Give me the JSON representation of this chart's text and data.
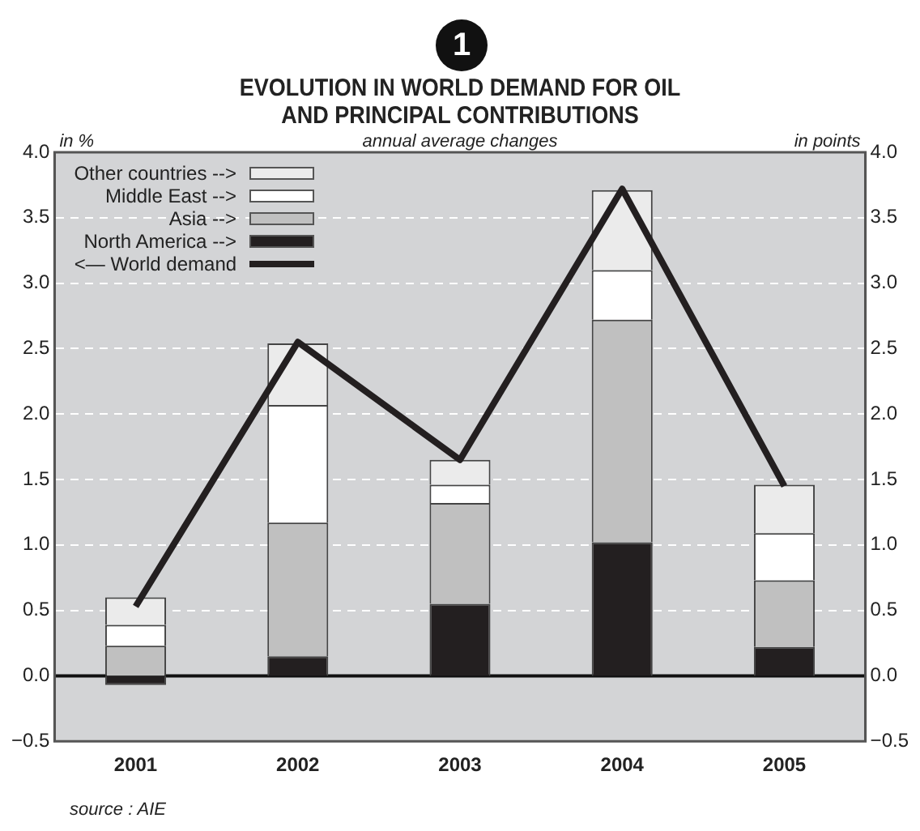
{
  "chart_data": {
    "type": "bar",
    "title": "EVOLUTION IN WORLD DEMAND FOR OIL\nAND PRINCIPAL CONTRIBUTIONS",
    "subtitle": "annual average changes",
    "ylabel": "in %",
    "y2label": "in points",
    "annotations": [
      "1",
      "source : AIE"
    ],
    "categories": [
      "2001",
      "2002",
      "2003",
      "2004",
      "2005"
    ],
    "stacked": true,
    "series": [
      {
        "name": "North America -->",
        "color": "#231f20",
        "axis": "y2",
        "values": [
          -0.07,
          0.15,
          0.55,
          1.02,
          0.22
        ]
      },
      {
        "name": "Asia -->",
        "color": "#c0c0c0",
        "axis": "y2",
        "values": [
          0.23,
          1.02,
          0.77,
          1.7,
          0.51
        ]
      },
      {
        "name": "Middle East -->",
        "color": "#ffffff",
        "axis": "y2",
        "values": [
          0.16,
          0.9,
          0.14,
          0.38,
          0.36
        ]
      },
      {
        "name": "Other countries -->",
        "color": "#ebebeb",
        "axis": "y2",
        "values": [
          0.21,
          0.47,
          0.19,
          0.61,
          0.37
        ]
      },
      {
        "name": "<— World demand",
        "type": "line",
        "color": "#231f20",
        "axis": "y",
        "values": [
          0.53,
          2.55,
          1.65,
          3.72,
          1.45
        ]
      }
    ],
    "ylim": [
      -0.5,
      4.0
    ],
    "yticks": [
      {
        "value": -0.5,
        "label": "−0.5"
      },
      {
        "value": 0,
        "label": "0.0"
      },
      0.5,
      {
        "value": 1,
        "label": "1.0"
      },
      1.5,
      {
        "value": 2,
        "label": "2.0"
      },
      2.5,
      {
        "value": 3,
        "label": "3.0"
      },
      3.5,
      {
        "value": 4,
        "label": "4.0"
      }
    ],
    "y2lim": [
      -0.5,
      4.0
    ],
    "y2ticks": [
      {
        "value": -0.5,
        "label": "−0.5"
      },
      {
        "value": 0,
        "label": "0.0"
      },
      0.5,
      {
        "value": 1,
        "label": "1.0"
      },
      1.5,
      {
        "value": 2,
        "label": "2.0"
      },
      2.5,
      {
        "value": 3,
        "label": "3.0"
      },
      3.5,
      {
        "value": 4,
        "label": "4.0"
      }
    ],
    "grid": "y",
    "legend": "top left",
    "marker": "none",
    "line_style": "solid"
  }
}
